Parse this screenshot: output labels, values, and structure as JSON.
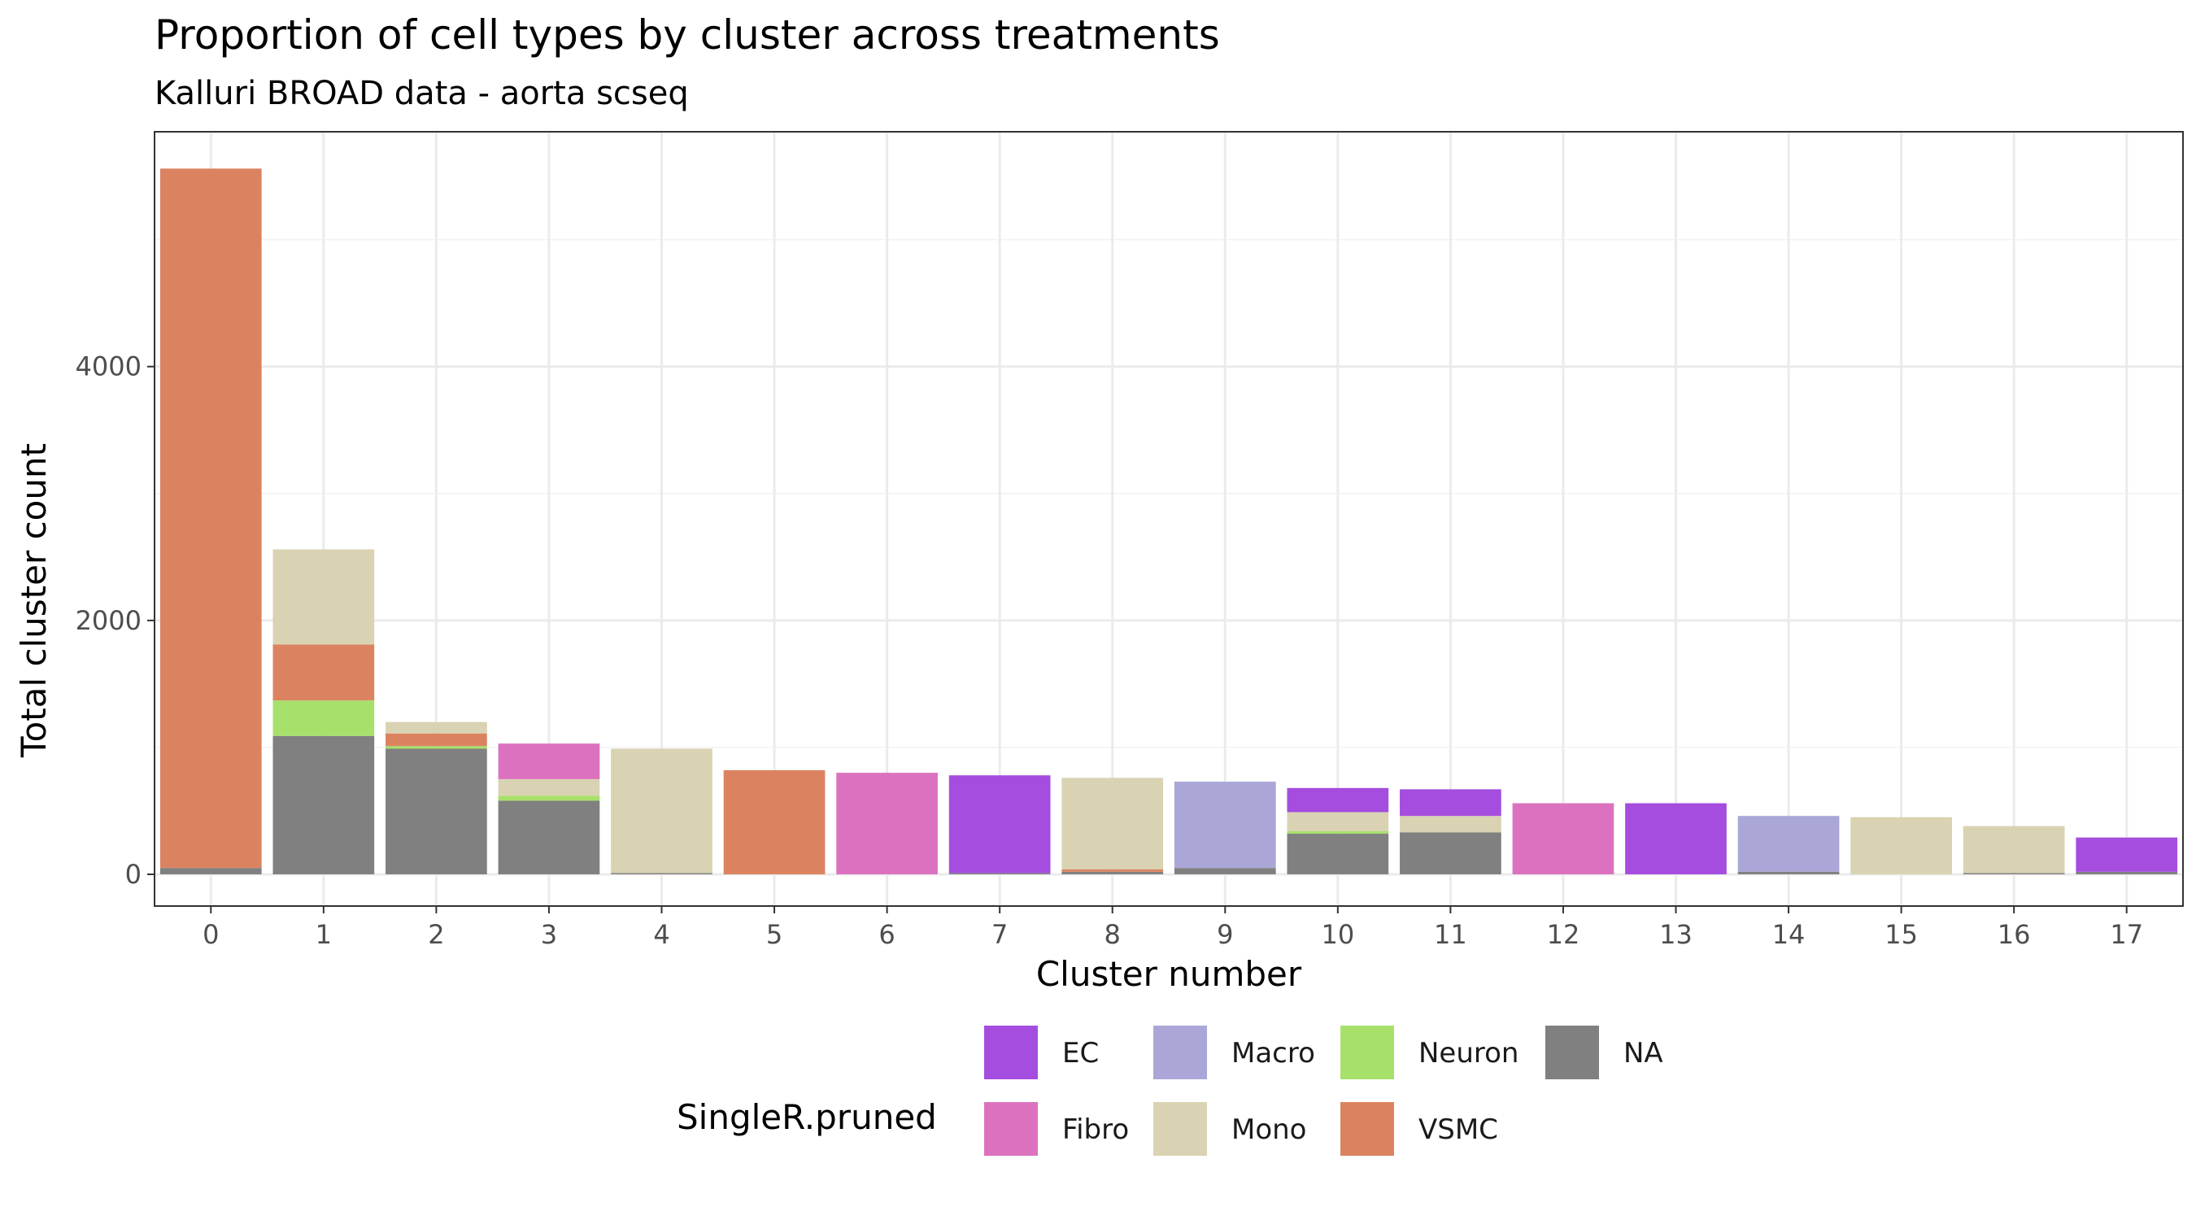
{
  "chart_data": {
    "type": "bar",
    "stacked": true,
    "title": "Proportion of cell types by cluster across treatments",
    "subtitle": "Kalluri BROAD data - aorta scseq",
    "xlabel": "Cluster number",
    "ylabel": "Total cluster count",
    "ylim": [
      -250,
      5850
    ],
    "yticks": [
      0,
      2000,
      4000
    ],
    "grid": true,
    "legend_position": "bottom",
    "legend_title": "SingleR.pruned",
    "categories": [
      "0",
      "1",
      "2",
      "3",
      "4",
      "5",
      "6",
      "7",
      "8",
      "9",
      "10",
      "11",
      "12",
      "13",
      "14",
      "15",
      "16",
      "17"
    ],
    "stack_order": [
      "NA",
      "Neuron",
      "VSMC",
      "Mono",
      "Macro",
      "Fibro",
      "EC"
    ],
    "legend_order": [
      "EC",
      "Macro",
      "Neuron",
      "NA",
      "Fibro",
      "Mono",
      "VSMC"
    ],
    "colors": {
      "EC": "#a54ddf",
      "Fibro": "#dc72bf",
      "Macro": "#aaa7d8",
      "Mono": "#d9d3b3",
      "Neuron": "#a8e06c",
      "VSMC": "#db8360",
      "NA": "#808080"
    },
    "series": [
      {
        "name": "NA",
        "values": [
          50,
          1090,
          990,
          580,
          10,
          0,
          0,
          10,
          20,
          50,
          320,
          330,
          0,
          0,
          20,
          0,
          10,
          20
        ]
      },
      {
        "name": "Neuron",
        "values": [
          0,
          280,
          20,
          40,
          0,
          0,
          0,
          0,
          0,
          0,
          20,
          0,
          0,
          0,
          0,
          0,
          0,
          0
        ]
      },
      {
        "name": "VSMC",
        "values": [
          5510,
          440,
          100,
          0,
          0,
          820,
          0,
          0,
          20,
          0,
          0,
          0,
          0,
          0,
          0,
          0,
          0,
          0
        ]
      },
      {
        "name": "Mono",
        "values": [
          0,
          750,
          90,
          130,
          980,
          0,
          0,
          0,
          720,
          0,
          150,
          130,
          0,
          0,
          0,
          450,
          370,
          0
        ]
      },
      {
        "name": "Macro",
        "values": [
          0,
          0,
          0,
          0,
          0,
          0,
          0,
          0,
          0,
          680,
          0,
          0,
          0,
          0,
          440,
          0,
          0,
          0
        ]
      },
      {
        "name": "Fibro",
        "values": [
          0,
          0,
          0,
          280,
          0,
          0,
          800,
          0,
          0,
          0,
          0,
          0,
          560,
          0,
          0,
          0,
          0,
          0
        ]
      },
      {
        "name": "EC",
        "values": [
          0,
          0,
          0,
          0,
          0,
          0,
          0,
          770,
          0,
          0,
          190,
          210,
          0,
          560,
          0,
          0,
          0,
          270
        ]
      }
    ]
  }
}
